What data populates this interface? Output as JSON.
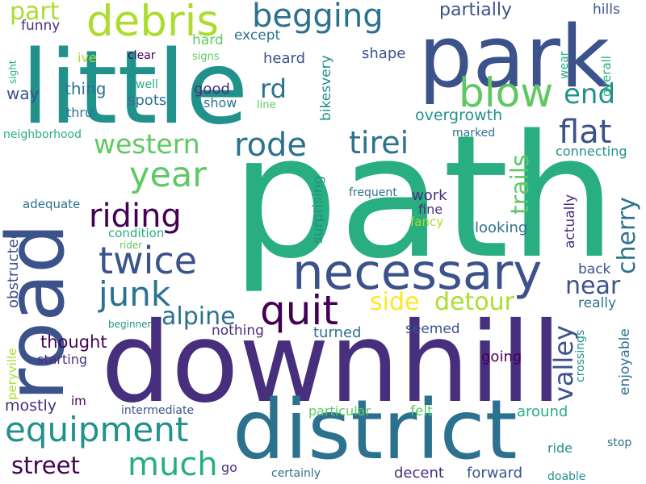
{
  "colors": {
    "background": "#ffffff",
    "palette": [
      "#440154",
      "#472f7d",
      "#3b528b",
      "#2c728e",
      "#21918c",
      "#28ae80",
      "#5ec962",
      "#addc30",
      "#fde725"
    ]
  },
  "words": [
    {
      "text": "path",
      "color": "#28ae80"
    },
    {
      "text": "downhill",
      "color": "#472f7d"
    },
    {
      "text": "little",
      "color": "#21918c"
    },
    {
      "text": "park",
      "color": "#3b528b"
    },
    {
      "text": "road",
      "color": "#3b528b"
    },
    {
      "text": "district",
      "color": "#2c728e"
    },
    {
      "text": "necessary",
      "color": "#3b528b"
    },
    {
      "text": "debris",
      "color": "#addc30"
    },
    {
      "text": "begging",
      "color": "#2c728e"
    },
    {
      "text": "blow",
      "color": "#5ec962"
    },
    {
      "text": "end",
      "color": "#21918c"
    },
    {
      "text": "flat",
      "color": "#3b528b"
    },
    {
      "text": "year",
      "color": "#5ec962"
    },
    {
      "text": "western",
      "color": "#5ec962"
    },
    {
      "text": "rode",
      "color": "#2c728e"
    },
    {
      "text": "tirei",
      "color": "#2c728e"
    },
    {
      "text": "riding",
      "color": "#440154"
    },
    {
      "text": "twice",
      "color": "#3b528b"
    },
    {
      "text": "junk",
      "color": "#2c728e"
    },
    {
      "text": "quit",
      "color": "#440154"
    },
    {
      "text": "equipment",
      "color": "#21918c"
    },
    {
      "text": "much",
      "color": "#28ae80"
    },
    {
      "text": "street",
      "color": "#440154"
    },
    {
      "text": "alpine",
      "color": "#2c728e"
    },
    {
      "text": "side",
      "color": "#fde725"
    },
    {
      "text": "detour",
      "color": "#addc30"
    },
    {
      "text": "near",
      "color": "#3b528b"
    },
    {
      "text": "valley",
      "color": "#3b528b"
    },
    {
      "text": "cherry",
      "color": "#2c728e"
    },
    {
      "text": "trails",
      "color": "#5ec962"
    },
    {
      "text": "rd",
      "color": "#2c728e"
    },
    {
      "text": "part",
      "color": "#addc30"
    },
    {
      "text": "partially",
      "color": "#3b528b"
    },
    {
      "text": "hills",
      "color": "#3b528b"
    },
    {
      "text": "funny",
      "color": "#472f7d"
    },
    {
      "text": "except",
      "color": "#2c728e"
    },
    {
      "text": "hard",
      "color": "#5ec962"
    },
    {
      "text": "heard",
      "color": "#3b528b"
    },
    {
      "text": "shape",
      "color": "#3b528b"
    },
    {
      "text": "ive",
      "color": "#addc30"
    },
    {
      "text": "clear",
      "color": "#440154"
    },
    {
      "text": "signs",
      "color": "#5ec962"
    },
    {
      "text": "way",
      "color": "#3b528b"
    },
    {
      "text": "thing",
      "color": "#2c728e"
    },
    {
      "text": "well",
      "color": "#28ae80"
    },
    {
      "text": "good",
      "color": "#472f7d"
    },
    {
      "text": "spots",
      "color": "#2c728e"
    },
    {
      "text": "show",
      "color": "#2c728e"
    },
    {
      "text": "thru",
      "color": "#2c728e"
    },
    {
      "text": "line",
      "color": "#5ec962"
    },
    {
      "text": "overgrowth",
      "color": "#21918c"
    },
    {
      "text": "marked",
      "color": "#2c728e"
    },
    {
      "text": "connecting",
      "color": "#21918c"
    },
    {
      "text": "neighborhood",
      "color": "#28ae80"
    },
    {
      "text": "sight",
      "color": "#28ae80"
    },
    {
      "text": "wear",
      "color": "#28ae80"
    },
    {
      "text": "overall",
      "color": "#28ae80"
    },
    {
      "text": "bikesvery",
      "color": "#21918c"
    },
    {
      "text": "adequate",
      "color": "#2c728e"
    },
    {
      "text": "work",
      "color": "#472f7d"
    },
    {
      "text": "fine",
      "color": "#472f7d"
    },
    {
      "text": "frequent",
      "color": "#2c728e"
    },
    {
      "text": "fancy",
      "color": "#addc30"
    },
    {
      "text": "condition",
      "color": "#28ae80"
    },
    {
      "text": "looking",
      "color": "#2c728e"
    },
    {
      "text": "rider",
      "color": "#5ec962"
    },
    {
      "text": "surprising",
      "color": "#21918c"
    },
    {
      "text": "actually",
      "color": "#472f7d"
    },
    {
      "text": "obstructed",
      "color": "#3b528b"
    },
    {
      "text": "back",
      "color": "#3b528b"
    },
    {
      "text": "really",
      "color": "#2c728e"
    },
    {
      "text": "beginner",
      "color": "#21918c"
    },
    {
      "text": "nothing",
      "color": "#472f7d"
    },
    {
      "text": "turned",
      "color": "#2c728e"
    },
    {
      "text": "seemed",
      "color": "#3b528b"
    },
    {
      "text": "thought",
      "color": "#440154"
    },
    {
      "text": "starting",
      "color": "#472f7d"
    },
    {
      "text": "going",
      "color": "#440154"
    },
    {
      "text": "crossings",
      "color": "#21918c"
    },
    {
      "text": "enjoyable",
      "color": "#2c728e"
    },
    {
      "text": "peryville",
      "color": "#addc30"
    },
    {
      "text": "mostly",
      "color": "#472f7d"
    },
    {
      "text": "im",
      "color": "#440154"
    },
    {
      "text": "intermediate",
      "color": "#3b528b"
    },
    {
      "text": "particular",
      "color": "#5ec962"
    },
    {
      "text": "felt",
      "color": "#5ec962"
    },
    {
      "text": "around",
      "color": "#28ae80"
    },
    {
      "text": "ride",
      "color": "#21918c"
    },
    {
      "text": "stop",
      "color": "#2c728e"
    },
    {
      "text": "go",
      "color": "#472f7d"
    },
    {
      "text": "certainly",
      "color": "#2c728e"
    },
    {
      "text": "decent",
      "color": "#472f7d"
    },
    {
      "text": "forward",
      "color": "#3b528b"
    },
    {
      "text": "doable",
      "color": "#21918c"
    }
  ]
}
